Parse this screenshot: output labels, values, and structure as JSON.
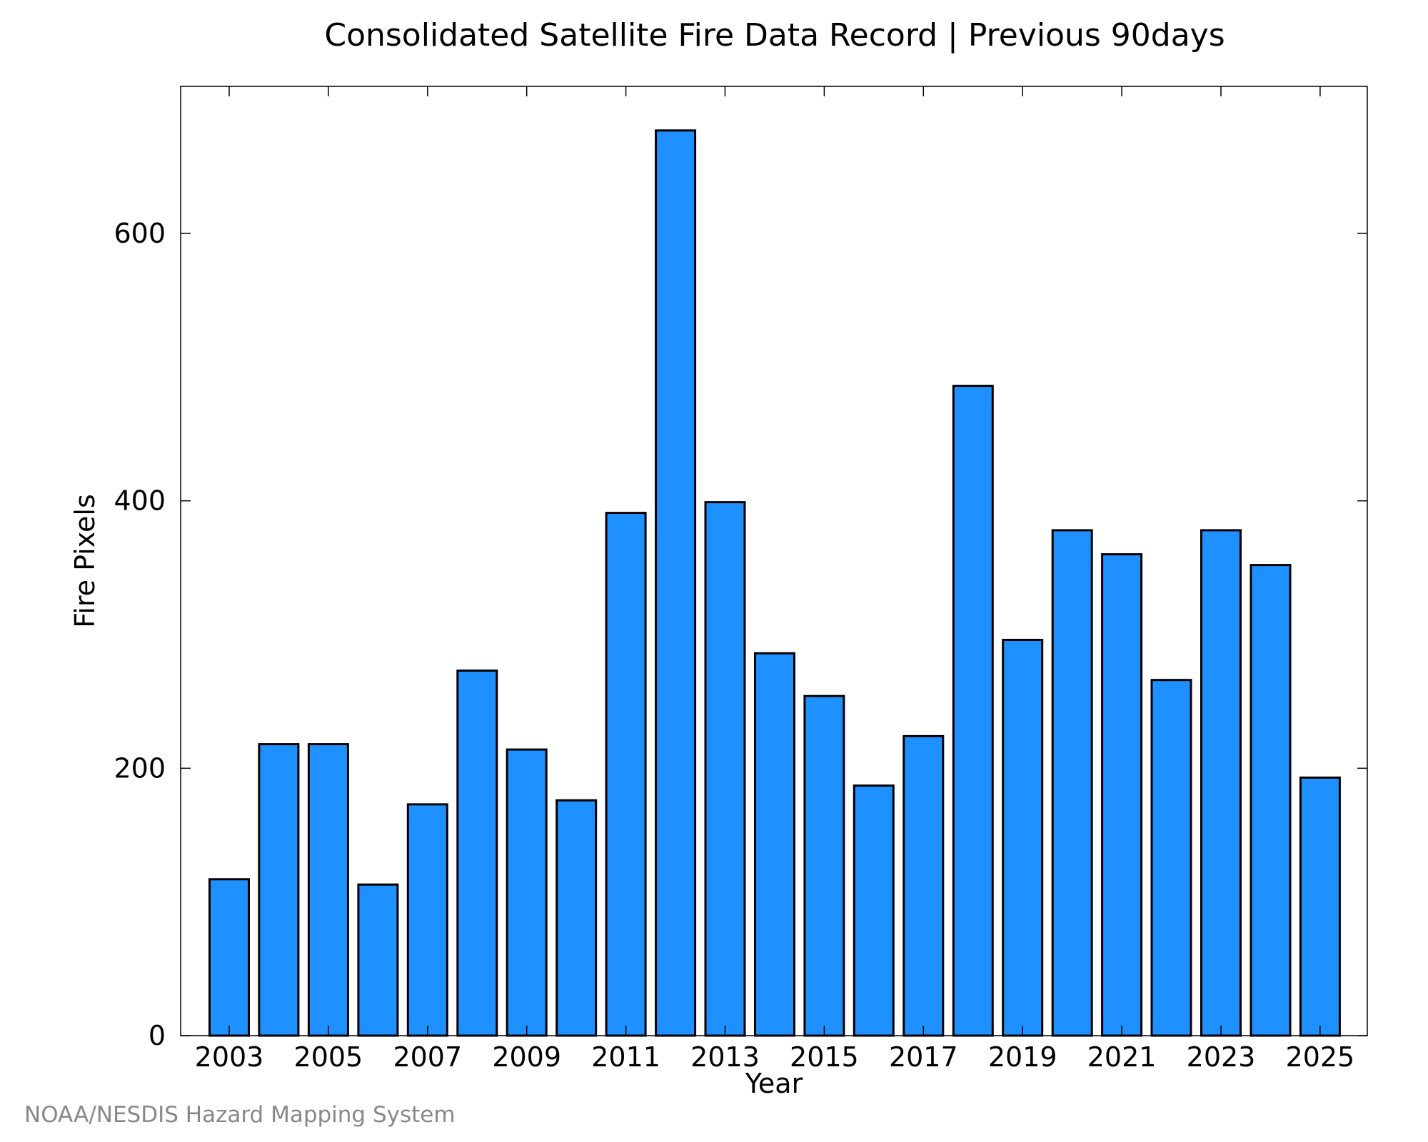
{
  "chart_data": {
    "type": "bar",
    "title": "Consolidated Satellite Fire Data Record | Previous 90days",
    "xlabel": "Year",
    "ylabel": "Fire Pixels",
    "credit": "NOAA/NESDIS Hazard Mapping System",
    "categories": [
      "2003",
      "2004",
      "2005",
      "2006",
      "2007",
      "2008",
      "2009",
      "2010",
      "2011",
      "2012",
      "2013",
      "2014",
      "2015",
      "2016",
      "2017",
      "2018",
      "2019",
      "2020",
      "2021",
      "2022",
      "2023",
      "2024",
      "2025"
    ],
    "values": [
      117,
      218,
      218,
      113,
      173,
      273,
      214,
      176,
      391,
      677,
      399,
      286,
      254,
      187,
      224,
      486,
      296,
      378,
      360,
      266,
      378,
      352,
      193
    ],
    "x_tick_labels": [
      "2003",
      "2005",
      "2007",
      "2009",
      "2011",
      "2013",
      "2015",
      "2017",
      "2019",
      "2021",
      "2023",
      "2025"
    ],
    "y_ticks": [
      0,
      200,
      400,
      600
    ],
    "ylim": [
      0,
      710
    ],
    "grid": false,
    "bar_color": "#1e90ff",
    "bar_edge_color": "#000000"
  }
}
